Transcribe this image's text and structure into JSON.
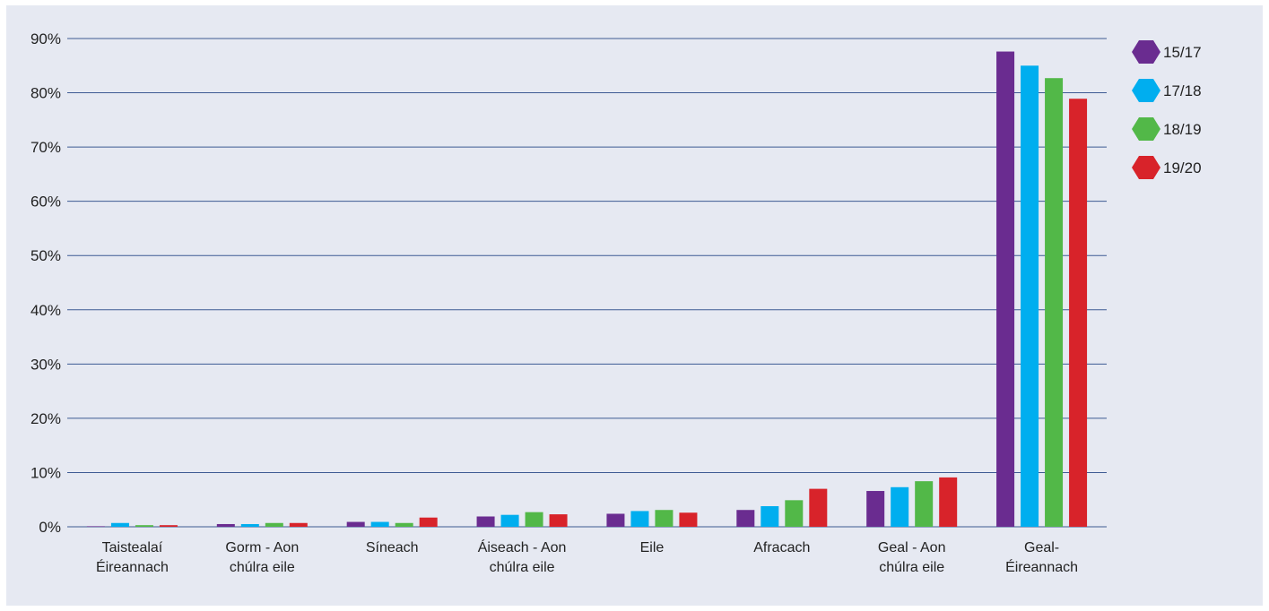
{
  "chart_data": {
    "type": "bar",
    "title": "",
    "xlabel": "",
    "ylabel": "",
    "ylim": [
      0,
      90
    ],
    "y_ticks": [
      "0%",
      "10%",
      "20%",
      "30%",
      "40%",
      "50%",
      "60%",
      "70%",
      "80%",
      "90%"
    ],
    "grid": true,
    "legend_position": "right",
    "categories": [
      [
        "Taistealaí",
        "Éireannach"
      ],
      [
        "Gorm - Aon",
        "chúlra eile"
      ],
      [
        "Síneach"
      ],
      [
        "Áiseach - Aon",
        "chúlra eile"
      ],
      [
        "Eile"
      ],
      [
        "Afracach"
      ],
      [
        "Geal - Aon",
        "chúlra eile"
      ],
      [
        "Geal-",
        "Éireannach"
      ]
    ],
    "series": [
      {
        "name": "15/17",
        "color": "#6a2c90",
        "values": [
          0.1,
          0.5,
          0.9,
          1.9,
          2.4,
          3.1,
          6.6,
          87.6
        ]
      },
      {
        "name": "17/18",
        "color": "#00aeef",
        "values": [
          0.7,
          0.5,
          0.9,
          2.2,
          2.9,
          3.8,
          7.3,
          85.0
        ]
      },
      {
        "name": "18/19",
        "color": "#52b848",
        "values": [
          0.3,
          0.7,
          0.7,
          2.7,
          3.1,
          4.9,
          8.4,
          82.7
        ]
      },
      {
        "name": "19/20",
        "color": "#d8232a",
        "values": [
          0.3,
          0.7,
          1.7,
          2.3,
          2.6,
          7.0,
          9.1,
          78.9
        ]
      }
    ]
  }
}
